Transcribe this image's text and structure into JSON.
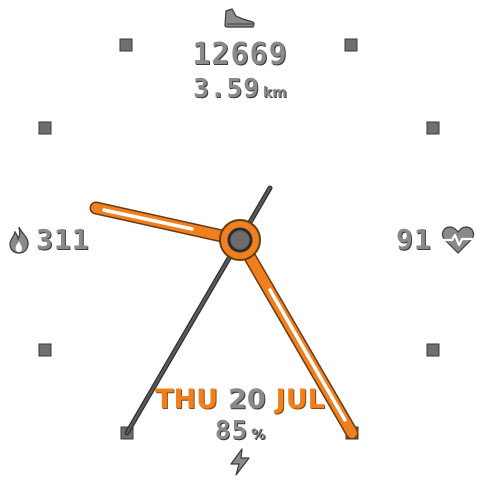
{
  "colors": {
    "accent": "#f07f1e",
    "text_gray": "#8a8a8a",
    "shadow": "#3a3a3a",
    "marker": "#6f6f6f",
    "hand_dark": "#555555"
  },
  "complications": {
    "steps": {
      "icon": "shoe-icon",
      "value": "12669"
    },
    "distance": {
      "value": "3.59",
      "unit": "km"
    },
    "calories": {
      "icon": "flame-icon",
      "value": "311"
    },
    "heart_rate": {
      "icon": "heart-pulse-icon",
      "value": "91"
    },
    "date": {
      "weekday": "THU",
      "day": "20",
      "month": "JUL"
    },
    "battery": {
      "value": "85",
      "unit": "%",
      "icon": "lightning-bolt-icon"
    }
  }
}
